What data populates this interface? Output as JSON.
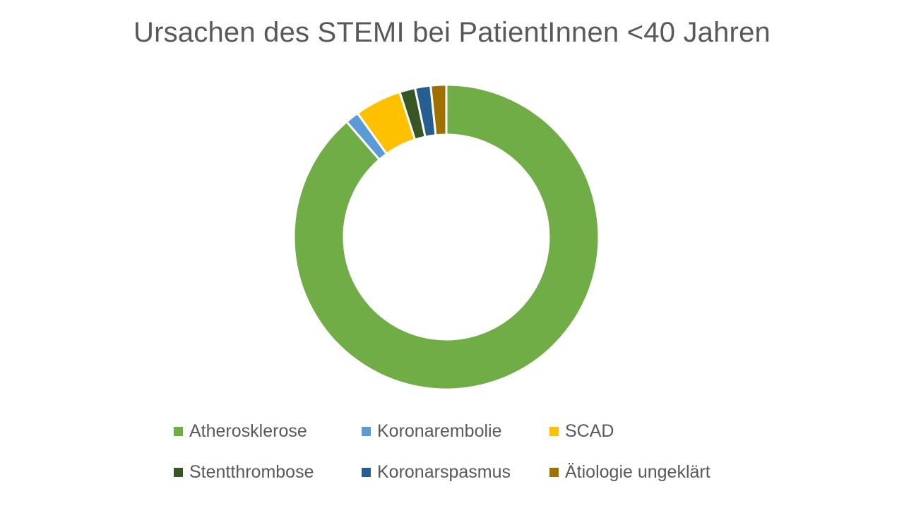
{
  "chart_data": {
    "type": "doughnut",
    "title": "Ursachen des STEMI bei PatientInnen <40 Jahren",
    "categories": [
      "Atherosklerose",
      "Koronarembolie",
      "SCAD",
      "Stentthrombose",
      "Koronarspasmus",
      "Ätiologie ungeklärt"
    ],
    "values": [
      86,
      1.4,
      4.8,
      1.6,
      1.6,
      1.6
    ],
    "colors": [
      "#70AD47",
      "#5B9BD5",
      "#FFC000",
      "#375623",
      "#255E91",
      "#9E7000"
    ],
    "start_angle_deg": 0,
    "direction": "clockwise",
    "legend_position": "bottom"
  }
}
